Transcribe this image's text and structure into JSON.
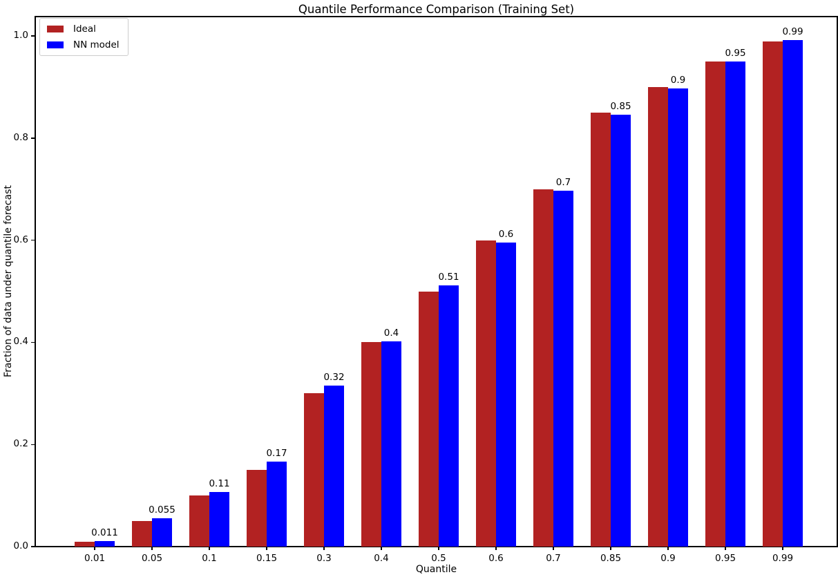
{
  "chart_data": {
    "type": "bar",
    "title": "Quantile Performance Comparison (Training Set)",
    "xlabel": "Quantile",
    "ylabel": "Fraction of data under quantile forecast",
    "categories": [
      "0.01",
      "0.05",
      "0.1",
      "0.15",
      "0.3",
      "0.4",
      "0.5",
      "0.6",
      "0.7",
      "0.85",
      "0.9",
      "0.95",
      "0.99"
    ],
    "series": [
      {
        "name": "Ideal",
        "color": "#B22222",
        "values": [
          0.01,
          0.05,
          0.1,
          0.15,
          0.3,
          0.4,
          0.5,
          0.6,
          0.7,
          0.85,
          0.9,
          0.95,
          0.99
        ]
      },
      {
        "name": "NN model",
        "color": "#0000FF",
        "values": [
          0.011,
          0.055,
          0.107,
          0.166,
          0.315,
          0.402,
          0.512,
          0.596,
          0.697,
          0.846,
          0.897,
          0.95,
          0.992
        ],
        "value_labels": [
          "0.011",
          "0.055",
          "0.11",
          "0.17",
          "0.32",
          "0.4",
          "0.51",
          "0.6",
          "0.7",
          "0.85",
          "0.9",
          "0.95",
          "0.99"
        ]
      }
    ],
    "yticks": [
      {
        "value": 0.0,
        "label": "0.0"
      },
      {
        "value": 0.2,
        "label": "0.2"
      },
      {
        "value": 0.4,
        "label": "0.4"
      },
      {
        "value": 0.6,
        "label": "0.6"
      },
      {
        "value": 0.8,
        "label": "0.8"
      },
      {
        "value": 1.0,
        "label": "1.0"
      }
    ],
    "ylim": [
      0,
      1.038
    ],
    "grid": false,
    "legend_position": "upper-left"
  }
}
